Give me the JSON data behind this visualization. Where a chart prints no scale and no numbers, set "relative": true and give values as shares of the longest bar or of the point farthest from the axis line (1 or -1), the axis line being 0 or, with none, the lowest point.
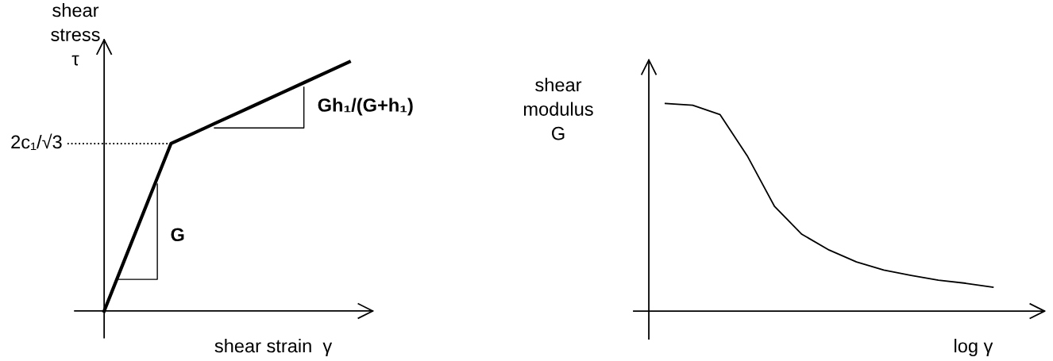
{
  "chart_data": [
    {
      "type": "line",
      "relative": true,
      "xlabel": "shear strain  γ",
      "ylabel": "shear\nstress\nτ",
      "marker": "none",
      "line_style": "solid",
      "categories": [
        null,
        null,
        null,
        null,
        null,
        null,
        null,
        null,
        null,
        null,
        null,
        null
      ],
      "series": [
        {
          "color": "#000000",
          "values": [
            0,
            0.224,
            0.448,
            0.672,
            0.713,
            0.754,
            0.795,
            0.836,
            0.877,
            0.918,
            0.959,
            1.0
          ]
        }
      ],
      "ref_lines": [
        {
          "axis": "y",
          "value": 0.672,
          "label": "2c₁/√3",
          "line_style": "dotted",
          "color": "#000000"
        }
      ],
      "annotations": [
        "G",
        "Gh₁/(G+h₁)"
      ]
    },
    {
      "type": "line",
      "relative": true,
      "xlabel": "log γ",
      "ylabel": "shear\nmodulus\nG",
      "marker": "none",
      "line_style": "solid",
      "categories": [
        null,
        null,
        null,
        null,
        null,
        null,
        null,
        null,
        null,
        null,
        null,
        null,
        null
      ],
      "series": [
        {
          "color": "#000000",
          "values": [
            1,
            0.992,
            0.947,
            0.748,
            0.504,
            0.37,
            0.294,
            0.237,
            0.198,
            0.172,
            0.149,
            0.134,
            0.115
          ]
        }
      ]
    }
  ]
}
